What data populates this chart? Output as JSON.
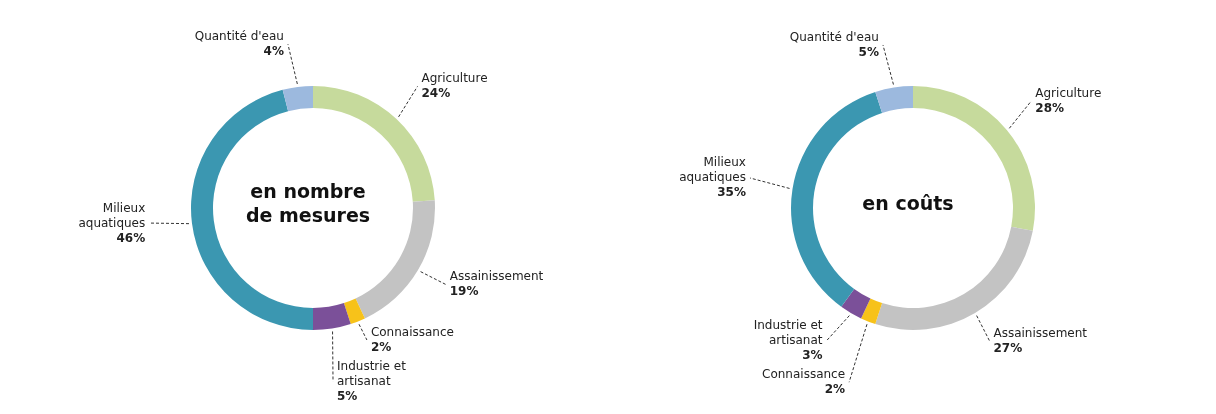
{
  "chart_data": [
    {
      "type": "donut",
      "title": "en nombre de mesures",
      "categories": [
        "Agriculture",
        "Assainissement",
        "Connaissance",
        "Industrie et artisanat",
        "Milieux aquatiques",
        "Quantité d'eau"
      ],
      "values": [
        24,
        19,
        2,
        5,
        46,
        4
      ],
      "value_labels": [
        "24%",
        "19%",
        "2%",
        "5%",
        "46%",
        "4%"
      ],
      "colors": [
        "#c6da9c",
        "#c3c3c3",
        "#f7c21a",
        "#7b5099",
        "#3b97b1",
        "#9cb9de"
      ],
      "legend": false
    },
    {
      "type": "donut",
      "title": "en coûts",
      "categories": [
        "Agriculture",
        "Assainissement",
        "Connaissance",
        "Industrie et artisanat",
        "Milieux aquatiques",
        "Quantité d'eau"
      ],
      "values": [
        28,
        27,
        2,
        3,
        35,
        5
      ],
      "value_labels": [
        "28%",
        "27%",
        "2%",
        "3%",
        "35%",
        "5%"
      ],
      "colors": [
        "#c6da9c",
        "#c3c3c3",
        "#f7c21a",
        "#7b5099",
        "#3b97b1",
        "#9cb9de"
      ],
      "legend": false
    }
  ]
}
